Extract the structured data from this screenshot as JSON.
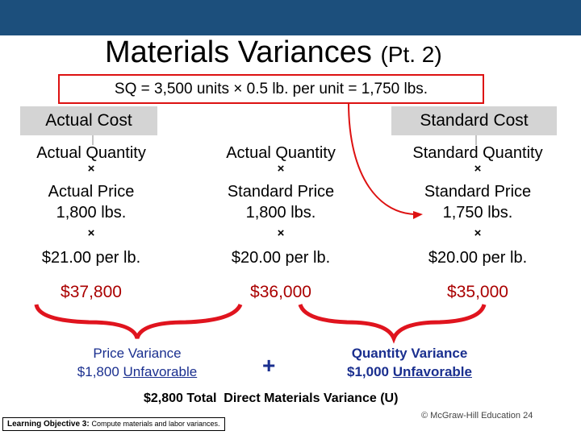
{
  "header": {
    "title": "Materials Variances",
    "title_suffix": "(Pt. 2)"
  },
  "sq_formula": "SQ = 3,500 units × 0.5 lb. per unit = 1,750 lbs.",
  "groups": [
    "Actual Cost",
    "Standard Cost"
  ],
  "columns": [
    {
      "quantity_label": "Actual Quantity",
      "times_1": "×",
      "price_label": "Actual Price",
      "quantity": "1,800 lbs.",
      "times_2": "×",
      "price": "$21.00 per lb.",
      "total": "$37,800"
    },
    {
      "quantity_label": "Actual Quantity",
      "times_1": "×",
      "price_label": "Standard Price",
      "quantity": "1,800 lbs.",
      "times_2": "×",
      "price": "$20.00 per lb.",
      "total": "$36,000"
    },
    {
      "quantity_label": "Standard Quantity",
      "times_1": "×",
      "price_label": "Standard Price",
      "quantity": "1,750 lbs.",
      "times_2": "×",
      "price": "$20.00 per lb.",
      "total": "$35,000"
    }
  ],
  "price_variance": {
    "label": "Price Variance",
    "amount": "$1,800",
    "status": "Unfavorable"
  },
  "plus": "+",
  "quantity_variance": {
    "label": "Quantity Variance",
    "amount": "$1,000",
    "status": "Unfavorable"
  },
  "total_variance": "$2,800 Total  Direct Materials Variance (U)",
  "footer": {
    "objective_label": "Learning Objective 3:",
    "objective_text": "Compute materials and labor variances.",
    "copyright": "© McGraw-Hill Education 24"
  }
}
